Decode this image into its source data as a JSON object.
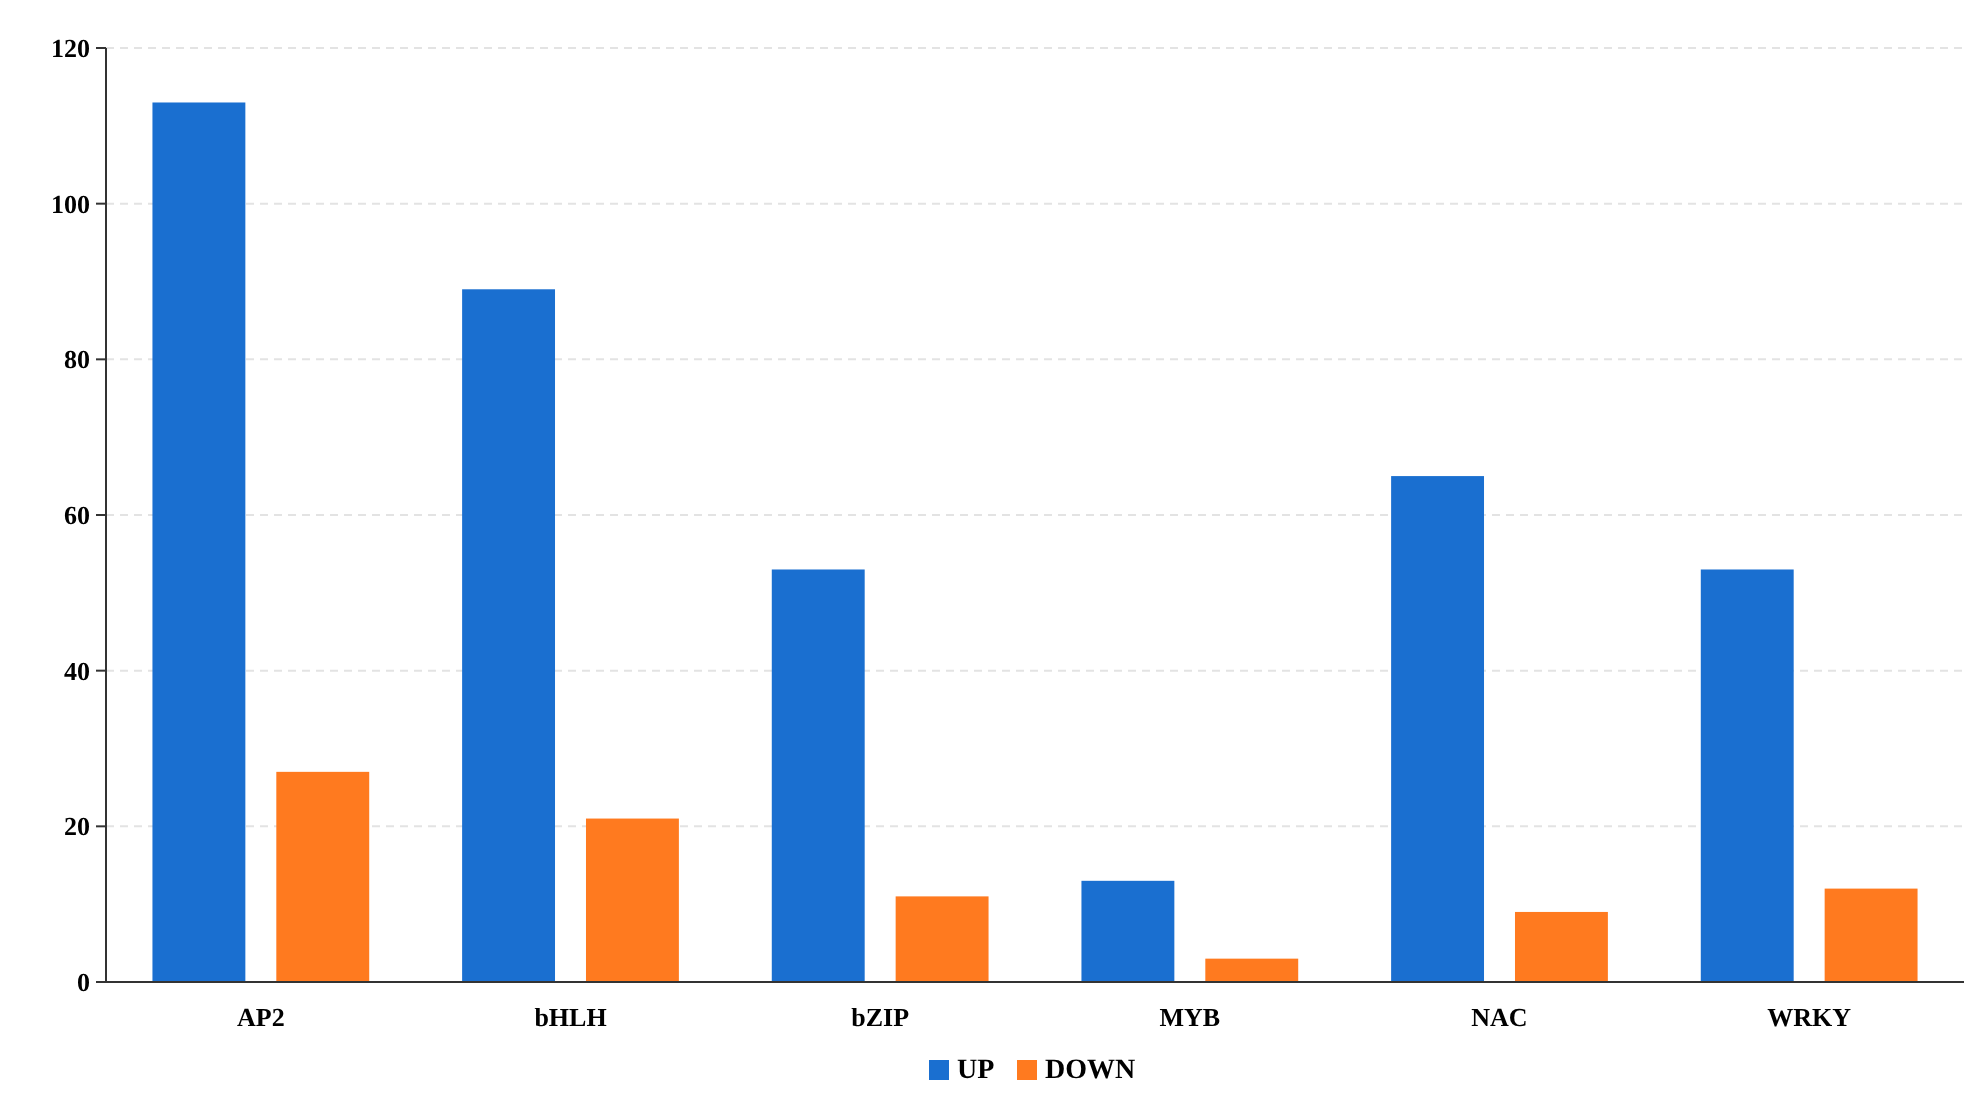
{
  "chart_data": {
    "type": "bar",
    "categories": [
      "AP2",
      "bHLH",
      "bZIP",
      "MYB",
      "NAC",
      "WRKY"
    ],
    "series": [
      {
        "name": "UP",
        "color": "#1a6fd0",
        "values": [
          113,
          89,
          53,
          13,
          65,
          53
        ]
      },
      {
        "name": "DOWN",
        "color": "#ff7a1f",
        "values": [
          27,
          21,
          11,
          3,
          9,
          12
        ]
      }
    ],
    "ylim": [
      0,
      120
    ],
    "yticks": [
      0,
      20,
      40,
      60,
      80,
      100,
      120
    ],
    "grid": "y",
    "legend": "bottom"
  }
}
